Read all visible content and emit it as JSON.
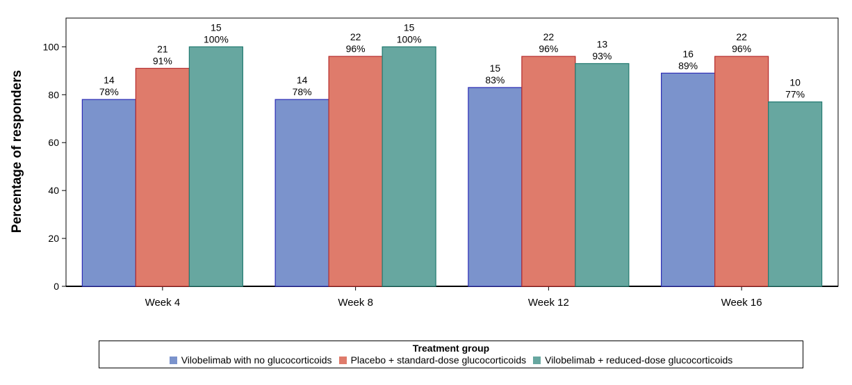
{
  "chart_data": {
    "type": "bar",
    "categories": [
      "Week 4",
      "Week 8",
      "Week 12",
      "Week 16"
    ],
    "ylabel": "Percentage of responders",
    "ylim": [
      0,
      112
    ],
    "yticks": [
      0,
      20,
      40,
      60,
      80,
      100
    ],
    "grid": false,
    "legend_title": "Treatment group",
    "legend_position": "bottom",
    "series": [
      {
        "name": "Vilobelimab with no glucocorticoids",
        "color": "#7b93cc",
        "edge_color": "#2b2bb5",
        "values": [
          78,
          78,
          83,
          89
        ],
        "counts": [
          "14",
          "14",
          "15",
          "16"
        ],
        "labels": [
          "78%",
          "78%",
          "83%",
          "89%"
        ]
      },
      {
        "name": "Placebo + standard-dose glucocorticoids",
        "color": "#df7b6b",
        "edge_color": "#b52b2b",
        "values": [
          91,
          96,
          96,
          96
        ],
        "counts": [
          "21",
          "22",
          "22",
          "22"
        ],
        "labels": [
          "91%",
          "96%",
          "96%",
          "96%"
        ]
      },
      {
        "name": "Vilobelimab + reduced-dose glucocorticoids",
        "color": "#67a7a0",
        "edge_color": "#227a70",
        "values": [
          100,
          100,
          93,
          77
        ],
        "counts": [
          "15",
          "15",
          "13",
          "10"
        ],
        "labels": [
          "100%",
          "100%",
          "93%",
          "77%"
        ]
      }
    ]
  }
}
